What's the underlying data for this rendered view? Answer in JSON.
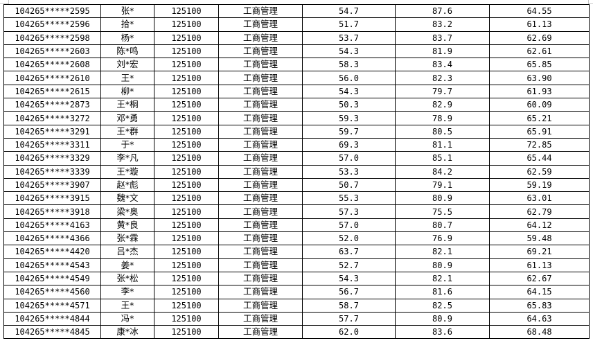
{
  "table": {
    "rows": [
      [
        "104265*****2595",
        "张*",
        "125100",
        "工商管理",
        "54.7",
        "87.6",
        "64.55"
      ],
      [
        "104265*****2596",
        "拾*",
        "125100",
        "工商管理",
        "51.7",
        "83.2",
        "61.13"
      ],
      [
        "104265*****2598",
        "杨*",
        "125100",
        "工商管理",
        "53.7",
        "83.7",
        "62.69"
      ],
      [
        "104265*****2603",
        "陈*鸣",
        "125100",
        "工商管理",
        "54.3",
        "81.9",
        "62.61"
      ],
      [
        "104265*****2608",
        "刘*宏",
        "125100",
        "工商管理",
        "58.3",
        "83.4",
        "65.85"
      ],
      [
        "104265*****2610",
        "王*",
        "125100",
        "工商管理",
        "56.0",
        "82.3",
        "63.90"
      ],
      [
        "104265*****2615",
        "柳*",
        "125100",
        "工商管理",
        "54.3",
        "79.7",
        "61.93"
      ],
      [
        "104265*****2873",
        "王*桐",
        "125100",
        "工商管理",
        "50.3",
        "82.9",
        "60.09"
      ],
      [
        "104265*****3272",
        "邓*勇",
        "125100",
        "工商管理",
        "59.3",
        "78.9",
        "65.21"
      ],
      [
        "104265*****3291",
        "王*群",
        "125100",
        "工商管理",
        "59.7",
        "80.5",
        "65.91"
      ],
      [
        "104265*****3311",
        "于*",
        "125100",
        "工商管理",
        "69.3",
        "81.1",
        "72.85"
      ],
      [
        "104265*****3329",
        "李*凡",
        "125100",
        "工商管理",
        "57.0",
        "85.1",
        "65.44"
      ],
      [
        "104265*****3339",
        "王*璇",
        "125100",
        "工商管理",
        "53.3",
        "84.2",
        "62.59"
      ],
      [
        "104265*****3907",
        "赵*彪",
        "125100",
        "工商管理",
        "50.7",
        "79.1",
        "59.19"
      ],
      [
        "104265*****3915",
        "魏*文",
        "125100",
        "工商管理",
        "55.3",
        "80.9",
        "63.01"
      ],
      [
        "104265*****3918",
        "梁*奥",
        "125100",
        "工商管理",
        "57.3",
        "75.5",
        "62.79"
      ],
      [
        "104265*****4163",
        "黄*良",
        "125100",
        "工商管理",
        "57.0",
        "80.7",
        "64.12"
      ],
      [
        "104265*****4366",
        "张*霖",
        "125100",
        "工商管理",
        "52.0",
        "76.9",
        "59.48"
      ],
      [
        "104265*****4420",
        "吕*杰",
        "125100",
        "工商管理",
        "63.7",
        "82.1",
        "69.21"
      ],
      [
        "104265*****4543",
        "姜*",
        "125100",
        "工商管理",
        "52.7",
        "80.9",
        "61.13"
      ],
      [
        "104265*****4549",
        "张*松",
        "125100",
        "工商管理",
        "54.3",
        "82.1",
        "62.67"
      ],
      [
        "104265*****4560",
        "李*",
        "125100",
        "工商管理",
        "56.7",
        "81.6",
        "64.15"
      ],
      [
        "104265*****4571",
        "王*",
        "125100",
        "工商管理",
        "58.7",
        "82.5",
        "65.83"
      ],
      [
        "104265*****4844",
        "冯*",
        "125100",
        "工商管理",
        "57.7",
        "80.9",
        "64.63"
      ],
      [
        "104265*****4845",
        "康*冰",
        "125100",
        "工商管理",
        "62.0",
        "83.6",
        "68.48"
      ]
    ]
  }
}
